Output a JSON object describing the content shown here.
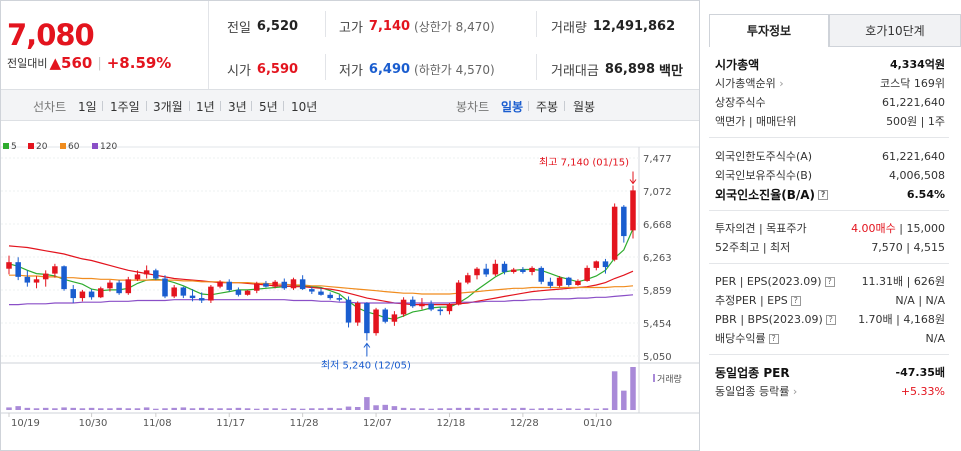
{
  "price": {
    "current": "7,080",
    "change_label": "전일대비",
    "change_arrow": "▲",
    "change_amount": "560",
    "change_rate": "+8.59%"
  },
  "stats": {
    "prev_close": {
      "label": "전일",
      "value": "6,520"
    },
    "high": {
      "label": "고가",
      "value": "7,140",
      "sub": "(상한가 8,470)"
    },
    "volume": {
      "label": "거래량",
      "value": "12,491,862"
    },
    "open": {
      "label": "시가",
      "value": "6,590"
    },
    "low": {
      "label": "저가",
      "value": "6,490",
      "sub": "(하한가 4,570)"
    },
    "amount": {
      "label": "거래대금",
      "value": "86,898",
      "unit": "백만"
    }
  },
  "toolbar": {
    "line_chart": "선차트",
    "periods": [
      "1일",
      "1주일",
      "3개월",
      "1년",
      "3년",
      "5년",
      "10년"
    ],
    "candle_chart": "봉차트",
    "candle_periods": [
      "일봉",
      "주봉",
      "월봉"
    ],
    "selected_candle": "일봉"
  },
  "chart": {
    "legend": [
      {
        "label": "5",
        "color": "#2eac2e"
      },
      {
        "label": "20",
        "color": "#e3141e"
      },
      {
        "label": "60",
        "color": "#f08c1e"
      },
      {
        "label": "120",
        "color": "#8a4fc7"
      }
    ],
    "high_label": "최고 7,140 (01/15)",
    "low_label": "최저 5,240 (12/05)",
    "volume_label": "거래량",
    "colors": {
      "up": "#e3141e",
      "down": "#1a5dcf",
      "volume": "#a98ad8"
    }
  },
  "chart_data": {
    "type": "candlestick",
    "y_ticks": [
      "7,477",
      "7,072",
      "6,668",
      "6,263",
      "5,859",
      "5,454",
      "5,050"
    ],
    "ylim": [
      5050,
      7477
    ],
    "x_ticks": [
      "10/19",
      "10/30",
      "11/08",
      "11/17",
      "11/28",
      "12/07",
      "12/18",
      "12/28",
      "01/10"
    ],
    "candles": [
      {
        "o": 6120,
        "h": 6280,
        "l": 6050,
        "c": 6200
      },
      {
        "o": 6200,
        "h": 6260,
        "l": 5980,
        "c": 6020
      },
      {
        "o": 6020,
        "h": 6100,
        "l": 5900,
        "c": 5950
      },
      {
        "o": 5950,
        "h": 6030,
        "l": 5880,
        "c": 5990
      },
      {
        "o": 5990,
        "h": 6100,
        "l": 5900,
        "c": 6060
      },
      {
        "o": 6060,
        "h": 6180,
        "l": 6010,
        "c": 6150
      },
      {
        "o": 6150,
        "h": 6160,
        "l": 5850,
        "c": 5870
      },
      {
        "o": 5870,
        "h": 5920,
        "l": 5700,
        "c": 5760
      },
      {
        "o": 5760,
        "h": 5860,
        "l": 5720,
        "c": 5840
      },
      {
        "o": 5840,
        "h": 5870,
        "l": 5740,
        "c": 5770
      },
      {
        "o": 5770,
        "h": 5900,
        "l": 5760,
        "c": 5880
      },
      {
        "o": 5880,
        "h": 5980,
        "l": 5840,
        "c": 5950
      },
      {
        "o": 5950,
        "h": 5980,
        "l": 5800,
        "c": 5820
      },
      {
        "o": 5820,
        "h": 6020,
        "l": 5800,
        "c": 5990
      },
      {
        "o": 5990,
        "h": 6100,
        "l": 5970,
        "c": 6050
      },
      {
        "o": 6050,
        "h": 6160,
        "l": 6000,
        "c": 6100
      },
      {
        "o": 6100,
        "h": 6120,
        "l": 5980,
        "c": 6000
      },
      {
        "o": 6000,
        "h": 6040,
        "l": 5760,
        "c": 5780
      },
      {
        "o": 5780,
        "h": 5920,
        "l": 5760,
        "c": 5890
      },
      {
        "o": 5890,
        "h": 5900,
        "l": 5760,
        "c": 5790
      },
      {
        "o": 5790,
        "h": 5870,
        "l": 5720,
        "c": 5760
      },
      {
        "o": 5760,
        "h": 5830,
        "l": 5700,
        "c": 5730
      },
      {
        "o": 5730,
        "h": 5920,
        "l": 5700,
        "c": 5900
      },
      {
        "o": 5900,
        "h": 5980,
        "l": 5880,
        "c": 5960
      },
      {
        "o": 5960,
        "h": 5990,
        "l": 5840,
        "c": 5860
      },
      {
        "o": 5860,
        "h": 5890,
        "l": 5780,
        "c": 5800
      },
      {
        "o": 5800,
        "h": 5860,
        "l": 5790,
        "c": 5850
      },
      {
        "o": 5850,
        "h": 5960,
        "l": 5820,
        "c": 5940
      },
      {
        "o": 5940,
        "h": 5970,
        "l": 5890,
        "c": 5900
      },
      {
        "o": 5900,
        "h": 5980,
        "l": 5880,
        "c": 5960
      },
      {
        "o": 5960,
        "h": 6000,
        "l": 5860,
        "c": 5880
      },
      {
        "o": 5880,
        "h": 6010,
        "l": 5860,
        "c": 5990
      },
      {
        "o": 5990,
        "h": 6040,
        "l": 5860,
        "c": 5870
      },
      {
        "o": 5870,
        "h": 5900,
        "l": 5810,
        "c": 5840
      },
      {
        "o": 5840,
        "h": 5880,
        "l": 5790,
        "c": 5800
      },
      {
        "o": 5800,
        "h": 5830,
        "l": 5740,
        "c": 5760
      },
      {
        "o": 5760,
        "h": 5800,
        "l": 5720,
        "c": 5740
      },
      {
        "o": 5740,
        "h": 5780,
        "l": 5400,
        "c": 5460
      },
      {
        "o": 5460,
        "h": 5720,
        "l": 5420,
        "c": 5700
      },
      {
        "o": 5700,
        "h": 5710,
        "l": 5240,
        "c": 5330
      },
      {
        "o": 5330,
        "h": 5640,
        "l": 5300,
        "c": 5620
      },
      {
        "o": 5620,
        "h": 5640,
        "l": 5450,
        "c": 5470
      },
      {
        "o": 5470,
        "h": 5600,
        "l": 5420,
        "c": 5560
      },
      {
        "o": 5560,
        "h": 5770,
        "l": 5530,
        "c": 5740
      },
      {
        "o": 5740,
        "h": 5780,
        "l": 5640,
        "c": 5660
      },
      {
        "o": 5660,
        "h": 5760,
        "l": 5620,
        "c": 5690
      },
      {
        "o": 5690,
        "h": 5730,
        "l": 5600,
        "c": 5620
      },
      {
        "o": 5620,
        "h": 5650,
        "l": 5550,
        "c": 5600
      },
      {
        "o": 5600,
        "h": 5700,
        "l": 5560,
        "c": 5680
      },
      {
        "o": 5680,
        "h": 5980,
        "l": 5670,
        "c": 5950
      },
      {
        "o": 5950,
        "h": 6070,
        "l": 5930,
        "c": 6040
      },
      {
        "o": 6040,
        "h": 6140,
        "l": 5990,
        "c": 6120
      },
      {
        "o": 6120,
        "h": 6180,
        "l": 6020,
        "c": 6050
      },
      {
        "o": 6050,
        "h": 6230,
        "l": 6030,
        "c": 6180
      },
      {
        "o": 6180,
        "h": 6210,
        "l": 6050,
        "c": 6080
      },
      {
        "o": 6080,
        "h": 6130,
        "l": 6060,
        "c": 6110
      },
      {
        "o": 6110,
        "h": 6140,
        "l": 6060,
        "c": 6080
      },
      {
        "o": 6080,
        "h": 6150,
        "l": 6040,
        "c": 6130
      },
      {
        "o": 6130,
        "h": 6150,
        "l": 5930,
        "c": 5960
      },
      {
        "o": 5960,
        "h": 6010,
        "l": 5880,
        "c": 5910
      },
      {
        "o": 5910,
        "h": 6030,
        "l": 5890,
        "c": 6010
      },
      {
        "o": 6010,
        "h": 6020,
        "l": 5900,
        "c": 5920
      },
      {
        "o": 5920,
        "h": 5990,
        "l": 5910,
        "c": 5970
      },
      {
        "o": 5970,
        "h": 6160,
        "l": 5960,
        "c": 6130
      },
      {
        "o": 6130,
        "h": 6220,
        "l": 6100,
        "c": 6210
      },
      {
        "o": 6210,
        "h": 6240,
        "l": 6060,
        "c": 6140
      },
      {
        "o": 6230,
        "h": 6920,
        "l": 6210,
        "c": 6880
      },
      {
        "o": 6880,
        "h": 6900,
        "l": 6440,
        "c": 6520
      },
      {
        "o": 6590,
        "h": 7140,
        "l": 6490,
        "c": 7080
      }
    ],
    "volume": [
      6,
      9,
      5,
      4,
      5,
      4,
      6,
      5,
      4,
      5,
      4,
      4,
      5,
      4,
      4,
      6,
      3,
      4,
      5,
      6,
      4,
      5,
      4,
      4,
      4,
      5,
      4,
      3,
      4,
      4,
      3,
      4,
      3,
      4,
      4,
      5,
      4,
      8,
      7,
      30,
      11,
      12,
      9,
      5,
      4,
      4,
      3,
      4,
      4,
      5,
      5,
      5,
      4,
      4,
      4,
      4,
      5,
      3,
      4,
      4,
      3,
      4,
      3,
      4,
      3,
      4,
      90,
      45,
      100
    ],
    "ma": {
      "ma5": [
        6180,
        6150,
        6100,
        6060,
        6050,
        6030,
        5990,
        5960,
        5930,
        5870,
        5850,
        5860,
        5860,
        5880,
        5940,
        5980,
        5990,
        5980,
        5950,
        5910,
        5860,
        5810,
        5800,
        5820,
        5840,
        5860,
        5860,
        5870,
        5880,
        5890,
        5900,
        5910,
        5910,
        5900,
        5890,
        5850,
        5810,
        5720,
        5640,
        5590,
        5560,
        5520,
        5500,
        5540,
        5590,
        5610,
        5640,
        5650,
        5650,
        5700,
        5770,
        5860,
        5940,
        6020,
        6080,
        6100,
        6110,
        6110,
        6100,
        6060,
        6020,
        5990,
        5960,
        5990,
        6030,
        6100,
        6250,
        6350,
        6610
      ],
      "ma20": [
        6400,
        6390,
        6380,
        6360,
        6340,
        6320,
        6300,
        6270,
        6240,
        6220,
        6190,
        6160,
        6130,
        6100,
        6080,
        6060,
        6040,
        6020,
        6000,
        5990,
        5980,
        5970,
        5960,
        5950,
        5950,
        5950,
        5940,
        5930,
        5920,
        5910,
        5910,
        5900,
        5900,
        5890,
        5880,
        5870,
        5850,
        5820,
        5790,
        5760,
        5740,
        5720,
        5700,
        5690,
        5680,
        5680,
        5680,
        5680,
        5680,
        5690,
        5700,
        5720,
        5740,
        5760,
        5780,
        5800,
        5820,
        5840,
        5850,
        5860,
        5870,
        5880,
        5890,
        5900,
        5920,
        5950,
        6000,
        6040,
        6090
      ],
      "ma60": [
        6040,
        6040,
        6030,
        6030,
        6020,
        6020,
        6010,
        6010,
        6000,
        6000,
        5990,
        5990,
        5980,
        5980,
        5980,
        5980,
        5980,
        5980,
        5980,
        5970,
        5970,
        5960,
        5960,
        5960,
        5950,
        5950,
        5950,
        5940,
        5940,
        5930,
        5930,
        5920,
        5920,
        5910,
        5910,
        5900,
        5890,
        5880,
        5870,
        5860,
        5850,
        5840,
        5830,
        5820,
        5820,
        5810,
        5810,
        5810,
        5810,
        5820,
        5830,
        5840,
        5850,
        5860,
        5870,
        5880,
        5880,
        5890,
        5890,
        5890,
        5890,
        5890,
        5890,
        5890,
        5890,
        5890,
        5900,
        5900,
        5910
      ],
      "ma120": [
        5680,
        5680,
        5690,
        5690,
        5690,
        5700,
        5700,
        5700,
        5710,
        5710,
        5710,
        5720,
        5720,
        5720,
        5730,
        5730,
        5730,
        5730,
        5740,
        5740,
        5740,
        5740,
        5740,
        5740,
        5740,
        5740,
        5740,
        5740,
        5740,
        5740,
        5740,
        5730,
        5730,
        5730,
        5720,
        5720,
        5710,
        5710,
        5700,
        5700,
        5700,
        5700,
        5700,
        5700,
        5700,
        5700,
        5700,
        5700,
        5700,
        5710,
        5710,
        5710,
        5720,
        5720,
        5720,
        5730,
        5730,
        5740,
        5740,
        5750,
        5750,
        5750,
        5760,
        5760,
        5770,
        5770,
        5780,
        5790,
        5800
      ]
    }
  },
  "tabs": {
    "info": "투자정보",
    "orderbook": "호가10단계"
  },
  "info": {
    "market_cap": {
      "k": "시가총액",
      "v": "4,334억원"
    },
    "market_cap_rank": {
      "k": "시가총액순위",
      "v": "코스닥 169위"
    },
    "shares": {
      "k": "상장주식수",
      "v": "61,221,640"
    },
    "par_unit": {
      "k": "액면가 | 매매단위",
      "v": "500원 | 1주"
    },
    "foreign_limit": {
      "k": "외국인한도주식수(A)",
      "v": "61,221,640"
    },
    "foreign_hold": {
      "k": "외국인보유주식수(B)",
      "v": "4,006,508"
    },
    "foreign_ratio": {
      "k": "외국인소진율(B/A)",
      "v": "6.54%"
    },
    "opinion": {
      "k": "투자의견 | 목표주가",
      "v1": "4.00매수",
      "v2": "| 15,000"
    },
    "week52": {
      "k": "52주최고 | 최저",
      "v": "7,570 | 4,515"
    },
    "per_eps": {
      "k": "PER | EPS(2023.09)",
      "v": "11.31배 | 626원"
    },
    "est_per_eps": {
      "k": "추정PER | EPS",
      "v": "N/A | N/A"
    },
    "pbr_bps": {
      "k": "PBR | BPS(2023.09)",
      "v": "1.70배 | 4,168원"
    },
    "dividend": {
      "k": "배당수익률",
      "v": "N/A"
    },
    "industry_per": {
      "k": "동일업종 PER",
      "v": "-47.35배"
    },
    "industry_rate": {
      "k": "동일업종 등락률",
      "v": "+5.33%"
    }
  }
}
